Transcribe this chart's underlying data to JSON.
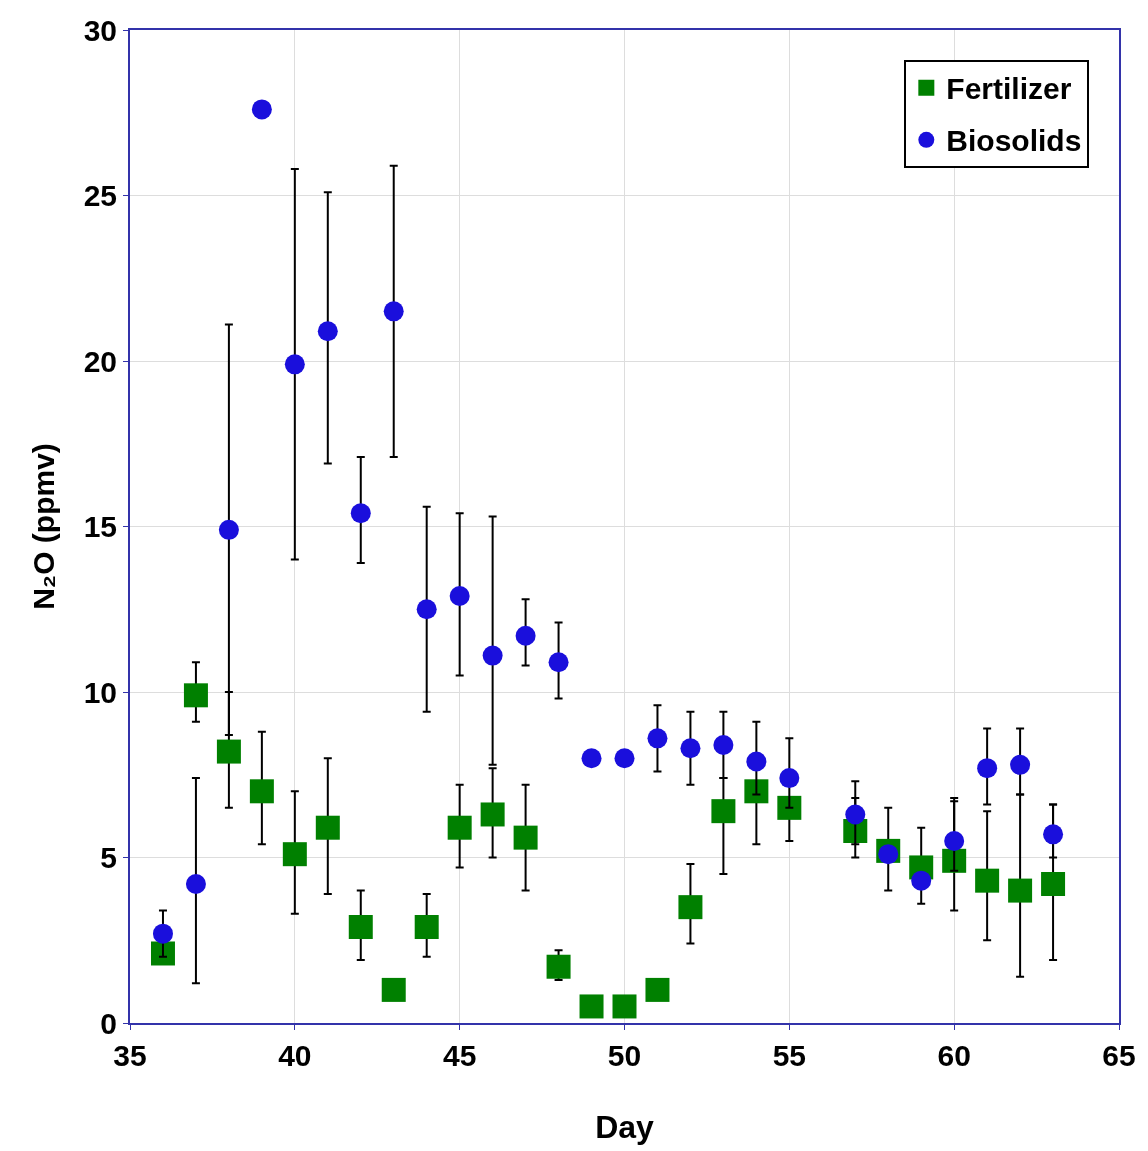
{
  "chart_data": {
    "type": "scatter",
    "xlabel": "Day",
    "ylabel": "N₂O (ppmv)",
    "xlim": [
      35,
      65
    ],
    "xticks": [
      35,
      40,
      45,
      50,
      55,
      60,
      65
    ],
    "ylim": [
      0,
      30
    ],
    "yticks": [
      0,
      5,
      10,
      15,
      20,
      25,
      30
    ],
    "grid": true,
    "legend": "top right",
    "x": [
      36,
      37,
      38,
      39,
      40,
      41,
      42,
      43,
      44,
      45,
      46,
      47,
      48,
      49,
      50,
      51,
      52,
      53,
      54,
      55,
      57,
      58,
      59,
      60,
      61,
      62,
      63
    ],
    "series": [
      {
        "name": "Fertilizer",
        "color": "#008000",
        "marker": "square",
        "values": [
          2.1,
          9.9,
          8.2,
          7.0,
          5.1,
          5.9,
          2.9,
          1.0,
          2.9,
          5.9,
          6.3,
          5.6,
          1.7,
          0.5,
          0.5,
          1.0,
          3.5,
          6.4,
          7.0,
          6.5,
          5.8,
          5.2,
          4.7,
          4.9,
          4.3,
          4.0,
          4.2
        ],
        "errors": [
          null,
          [
            9.1,
            10.9
          ],
          [
            6.5,
            10.0
          ],
          [
            5.4,
            8.8
          ],
          [
            3.3,
            7.0
          ],
          [
            3.9,
            8.0
          ],
          [
            1.9,
            4.0
          ],
          null,
          [
            2.0,
            3.9
          ],
          [
            4.7,
            7.2
          ],
          [
            5.0,
            7.7
          ],
          [
            4.0,
            7.2
          ],
          [
            1.3,
            2.2
          ],
          null,
          null,
          null,
          [
            2.4,
            4.8
          ],
          [
            4.5,
            7.4
          ],
          [
            5.4,
            7.0
          ],
          [
            5.5,
            6.5
          ],
          [
            5.0,
            6.8
          ],
          [
            4.0,
            6.5
          ],
          [
            3.6,
            5.9
          ],
          [
            3.4,
            6.8
          ],
          [
            2.5,
            6.4
          ],
          [
            1.4,
            6.9
          ],
          [
            1.9,
            6.6
          ]
        ]
      },
      {
        "name": "Biosolids",
        "color": "#1a0fdc",
        "marker": "circle",
        "values": [
          2.7,
          4.2,
          14.9,
          27.6,
          19.9,
          20.9,
          15.4,
          21.5,
          12.5,
          12.9,
          11.1,
          11.7,
          10.9,
          8.0,
          8.0,
          8.6,
          8.3,
          8.4,
          7.9,
          7.4,
          6.3,
          5.1,
          4.3,
          5.5,
          7.7,
          7.8,
          5.7
        ],
        "errors": [
          [
            2.0,
            3.4
          ],
          [
            1.2,
            7.4
          ],
          [
            8.7,
            21.1
          ],
          null,
          [
            14.0,
            25.8
          ],
          [
            16.9,
            25.1
          ],
          [
            13.9,
            17.1
          ],
          [
            17.1,
            25.9
          ],
          [
            9.4,
            15.6
          ],
          [
            10.5,
            15.4
          ],
          [
            7.8,
            15.3
          ],
          [
            10.8,
            12.8
          ],
          [
            9.8,
            12.1
          ],
          null,
          null,
          [
            7.6,
            9.6
          ],
          [
            7.2,
            9.4
          ],
          [
            7.4,
            9.4
          ],
          [
            6.9,
            9.1
          ],
          [
            6.5,
            8.6
          ],
          [
            5.4,
            7.3
          ],
          null,
          null,
          [
            4.6,
            6.7
          ],
          [
            6.6,
            8.9
          ],
          [
            6.9,
            8.9
          ],
          [
            5.0,
            6.6
          ]
        ]
      }
    ]
  }
}
